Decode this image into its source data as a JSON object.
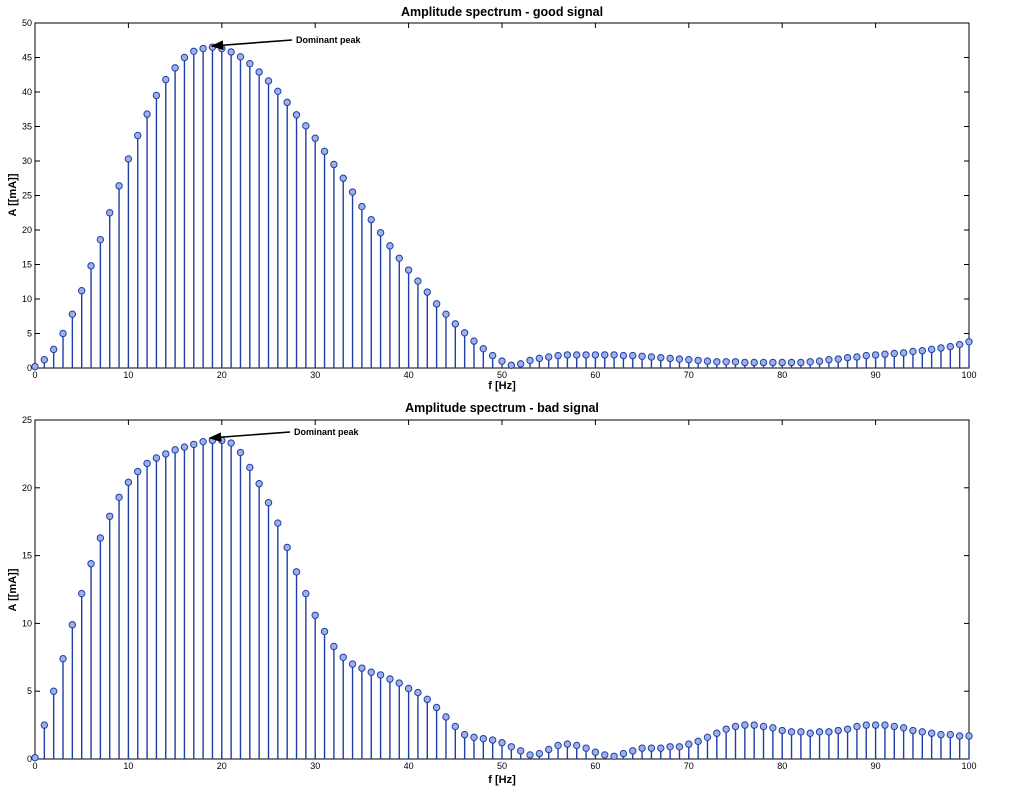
{
  "chart_data": [
    {
      "type": "stem",
      "title": "Amplitude spectrum - good signal",
      "xlabel": "f [Hz]",
      "ylabel": "A [[mA]]",
      "xlim": [
        0,
        100
      ],
      "ylim": [
        0,
        50
      ],
      "xticks": [
        "0",
        "10",
        "20",
        "30",
        "40",
        "50",
        "60",
        "70",
        "80",
        "90",
        "100"
      ],
      "yticks": [
        "0",
        "5",
        "10",
        "15",
        "20",
        "25",
        "30",
        "35",
        "40",
        "45",
        "50"
      ],
      "annotation": {
        "text": "Dominant peak",
        "x": 19,
        "y": 46.5
      },
      "x_start": 0,
      "x_step": 1,
      "values": [
        0.2,
        1.2,
        2.7,
        5,
        7.8,
        11.2,
        14.8,
        18.6,
        22.5,
        26.4,
        30.3,
        33.7,
        36.8,
        39.5,
        41.8,
        43.5,
        45,
        45.9,
        46.3,
        46.5,
        46.3,
        45.8,
        45.1,
        44.1,
        42.9,
        41.6,
        40.1,
        38.5,
        36.7,
        35.1,
        33.3,
        31.4,
        29.5,
        27.5,
        25.5,
        23.4,
        21.5,
        19.6,
        17.7,
        15.9,
        14.2,
        12.6,
        11,
        9.3,
        7.8,
        6.4,
        5.1,
        3.9,
        2.8,
        1.8,
        1,
        0.4,
        0.6,
        1.1,
        1.4,
        1.6,
        1.8,
        1.9,
        1.9,
        1.9,
        1.9,
        1.9,
        1.9,
        1.8,
        1.8,
        1.7,
        1.6,
        1.5,
        1.4,
        1.3,
        1.2,
        1.1,
        1.0,
        0.9,
        0.9,
        0.9,
        0.8,
        0.8,
        0.8,
        0.8,
        0.8,
        0.8,
        0.8,
        0.9,
        1.0,
        1.2,
        1.3,
        1.5,
        1.6,
        1.8,
        1.9,
        2.0,
        2.1,
        2.2,
        2.4,
        2.5,
        2.7,
        2.9,
        3.1,
        3.4,
        3.8
      ]
    },
    {
      "type": "stem",
      "title": "Amplitude spectrum - bad signal",
      "xlabel": "f [Hz]",
      "ylabel": "A [[mA]]",
      "xlim": [
        0,
        100
      ],
      "ylim": [
        0,
        25
      ],
      "xticks": [
        "0",
        "10",
        "20",
        "30",
        "40",
        "50",
        "60",
        "70",
        "80",
        "90",
        "100"
      ],
      "yticks": [
        "0",
        "5",
        "10",
        "15",
        "20",
        "25"
      ],
      "annotation": {
        "text": "Dominant peak",
        "x": 19,
        "y": 23.5
      },
      "x_start": 0,
      "x_step": 1,
      "values": [
        0.1,
        2.5,
        5,
        7.4,
        9.9,
        12.2,
        14.4,
        16.3,
        17.9,
        19.3,
        20.4,
        21.2,
        21.8,
        22.2,
        22.5,
        22.8,
        23,
        23.2,
        23.4,
        23.5,
        23.5,
        23.3,
        22.6,
        21.5,
        20.3,
        18.9,
        17.4,
        15.6,
        13.8,
        12.2,
        10.6,
        9.4,
        8.3,
        7.5,
        7,
        6.7,
        6.4,
        6.2,
        5.9,
        5.6,
        5.2,
        4.9,
        4.4,
        3.8,
        3.1,
        2.4,
        1.8,
        1.6,
        1.5,
        1.4,
        1.2,
        0.9,
        0.6,
        0.3,
        0.4,
        0.7,
        1.0,
        1.1,
        1.0,
        0.8,
        0.5,
        0.3,
        0.2,
        0.4,
        0.6,
        0.8,
        0.8,
        0.8,
        0.9,
        0.9,
        1.1,
        1.3,
        1.6,
        1.9,
        2.2,
        2.4,
        2.5,
        2.5,
        2.4,
        2.3,
        2.1,
        2.0,
        2.0,
        1.9,
        2.0,
        2.0,
        2.1,
        2.2,
        2.4,
        2.5,
        2.5,
        2.5,
        2.4,
        2.3,
        2.1,
        2.0,
        1.9,
        1.8,
        1.8,
        1.7,
        1.7
      ]
    }
  ]
}
